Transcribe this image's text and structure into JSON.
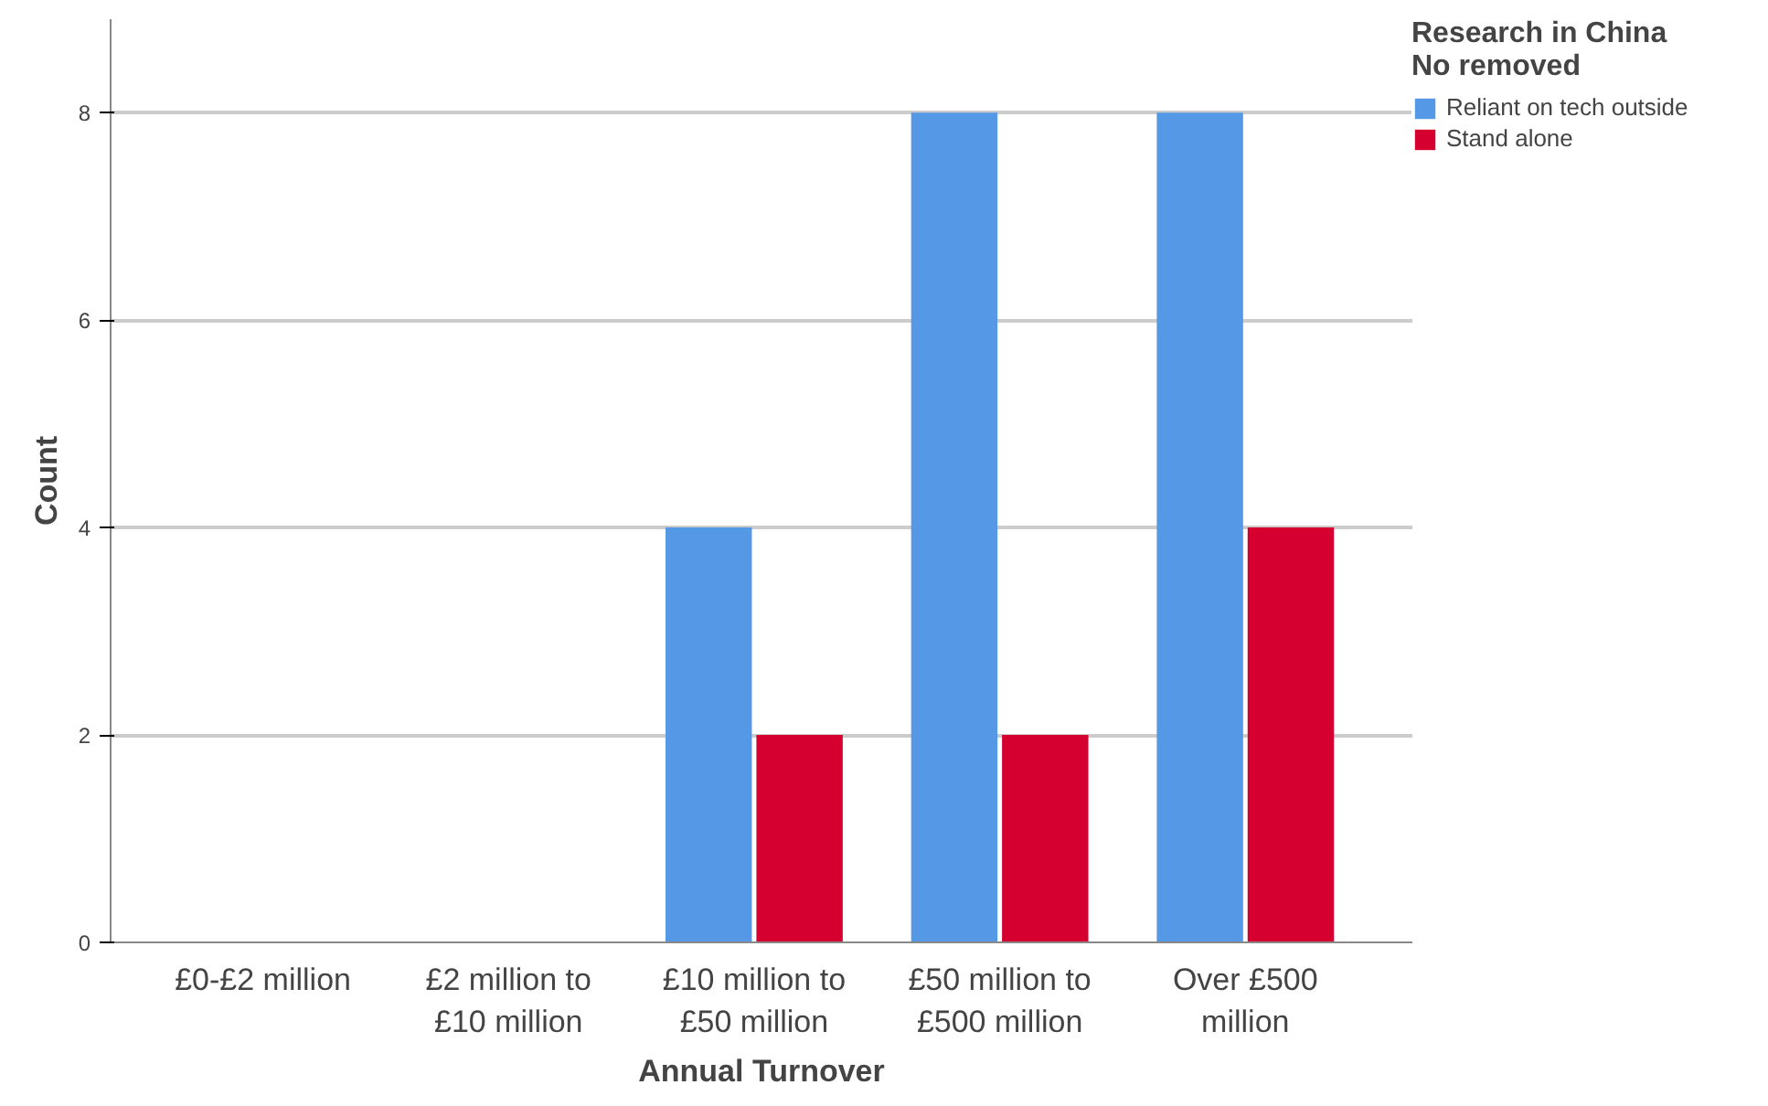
{
  "chart_data": {
    "type": "bar",
    "xlabel": "Annual Turnover",
    "ylabel": "Count",
    "legend_title": "Research in China\nNo removed",
    "categories": [
      "£0-£2 million",
      "£2 million to\n£10 million",
      "£10 million to\n£50 million",
      "£50 million to\n£500 million",
      "Over £500\nmillion"
    ],
    "series": [
      {
        "name": "Reliant on tech outside",
        "color": "#5599e6",
        "values": [
          0,
          0,
          4,
          8,
          8
        ]
      },
      {
        "name": "Stand alone",
        "color": "#d5002f",
        "values": [
          0,
          0,
          2,
          2,
          4
        ]
      }
    ],
    "ylim": [
      0,
      8.9
    ],
    "yticks": [
      0,
      2,
      4,
      6,
      8
    ],
    "grid": "y",
    "legend": "top right"
  }
}
